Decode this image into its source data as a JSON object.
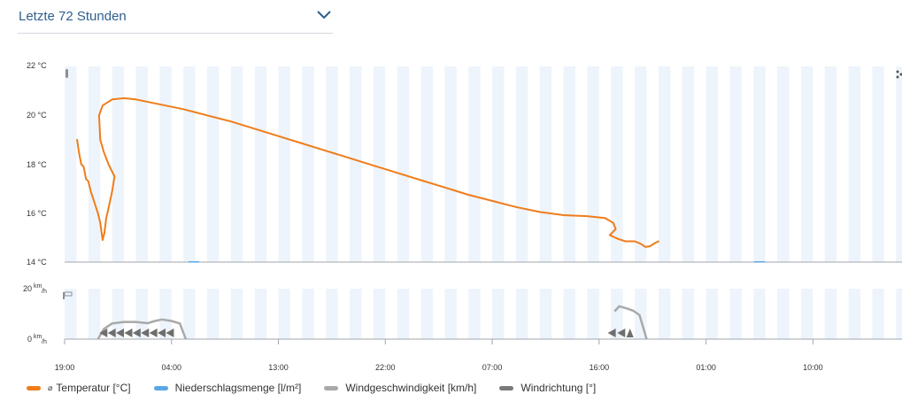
{
  "range_select": {
    "label": "Letzte 72 Stunden"
  },
  "legend": [
    {
      "symbol": "⌀",
      "label": "Temperatur [°C]",
      "color": "#ef7d1a"
    },
    {
      "symbol": "",
      "label": "Niederschlagsmenge [l/m²]",
      "color": "#5aa7e6"
    },
    {
      "symbol": "",
      "label": "Windgeschwindigkeit [km/h]",
      "color": "#a9a9a9"
    },
    {
      "symbol": "",
      "label": "Windrichtung [°]",
      "color": "#7a7a7a"
    }
  ],
  "chart_data": [
    {
      "type": "line",
      "series": [
        {
          "name": "Temperatur [°C]",
          "color": "#ef7d1a",
          "points": [
            [
              1.05,
              19.0
            ],
            [
              1.2,
              18.5
            ],
            [
              1.4,
              18.0
            ],
            [
              1.6,
              17.9
            ],
            [
              1.8,
              17.4
            ],
            [
              2.0,
              17.3
            ],
            [
              2.2,
              16.9
            ],
            [
              2.4,
              16.6
            ],
            [
              2.6,
              16.3
            ],
            [
              2.8,
              16.0
            ],
            [
              3.0,
              15.6
            ],
            [
              3.2,
              14.9
            ],
            [
              3.35,
              15.2
            ],
            [
              3.5,
              15.8
            ],
            [
              3.7,
              16.2
            ],
            [
              4.0,
              16.9
            ],
            [
              4.2,
              17.5
            ],
            [
              3.7,
              18.0
            ],
            [
              3.3,
              18.5
            ],
            [
              3.0,
              19.0
            ],
            [
              2.9,
              20.0
            ],
            [
              3.2,
              20.4
            ],
            [
              4.0,
              20.65
            ],
            [
              5.0,
              20.7
            ],
            [
              6.0,
              20.65
            ],
            [
              8.0,
              20.45
            ],
            [
              10.0,
              20.25
            ],
            [
              12.0,
              20.0
            ],
            [
              14.0,
              19.75
            ],
            [
              16.0,
              19.45
            ],
            [
              18.0,
              19.15
            ],
            [
              20.0,
              18.85
            ],
            [
              22.0,
              18.55
            ],
            [
              24.0,
              18.25
            ],
            [
              26.0,
              17.95
            ],
            [
              28.0,
              17.65
            ],
            [
              30.0,
              17.35
            ],
            [
              32.0,
              17.05
            ],
            [
              34.0,
              16.75
            ],
            [
              36.0,
              16.5
            ],
            [
              38.0,
              16.25
            ],
            [
              40.0,
              16.05
            ],
            [
              42.0,
              15.92
            ],
            [
              44.0,
              15.88
            ],
            [
              45.5,
              15.8
            ],
            [
              46.2,
              15.6
            ],
            [
              46.4,
              15.35
            ],
            [
              45.9,
              15.1
            ],
            [
              46.6,
              14.95
            ],
            [
              47.2,
              14.85
            ],
            [
              48.0,
              14.85
            ],
            [
              48.5,
              14.75
            ],
            [
              48.9,
              14.62
            ],
            [
              49.3,
              14.65
            ],
            [
              49.7,
              14.78
            ],
            [
              50.0,
              14.85
            ]
          ]
        }
      ],
      "ylim": [
        14,
        22
      ],
      "yticks": [
        "22 °C",
        "20 °C",
        "18 °C",
        "16 °C",
        "14 °C"
      ]
    },
    {
      "type": "area",
      "series": [
        {
          "name": "Windgeschwindigkeit [km/h]",
          "color": "#a9a9a9",
          "points": [
            [
              2.8,
              0
            ],
            [
              3.3,
              4
            ],
            [
              4.0,
              6.2
            ],
            [
              5.0,
              6.8
            ],
            [
              6.0,
              6.8
            ],
            [
              7.0,
              6.3
            ],
            [
              7.6,
              7.2
            ],
            [
              8.2,
              7.8
            ],
            [
              9.0,
              7.2
            ],
            [
              9.7,
              6.2
            ],
            [
              10.2,
              0
            ],
            [
              45.8,
              0
            ],
            [
              46.3,
              11
            ],
            [
              46.7,
              13
            ],
            [
              47.3,
              12.2
            ],
            [
              47.9,
              11.2
            ],
            [
              48.4,
              9.5
            ],
            [
              49.0,
              0
            ]
          ]
        }
      ],
      "wind_direction_arrows": [
        {
          "t": 3.3,
          "dir": "◄"
        },
        {
          "t": 4.0,
          "dir": "◄"
        },
        {
          "t": 4.7,
          "dir": "◄"
        },
        {
          "t": 5.4,
          "dir": "◄"
        },
        {
          "t": 6.1,
          "dir": "◄"
        },
        {
          "t": 6.8,
          "dir": "◄"
        },
        {
          "t": 7.5,
          "dir": "◄"
        },
        {
          "t": 8.2,
          "dir": "◄"
        },
        {
          "t": 8.9,
          "dir": "◄"
        },
        {
          "t": 46.1,
          "dir": "◄"
        },
        {
          "t": 46.9,
          "dir": "◄"
        },
        {
          "t": 47.6,
          "dir": "▲"
        }
      ],
      "ylim": [
        0,
        20
      ],
      "yticks": [
        "20 km/h",
        "0 km/h"
      ]
    }
  ],
  "x_axis": {
    "ticks": [
      {
        "t": 0,
        "label": "19:00"
      },
      {
        "t": 9,
        "label": "04:00"
      },
      {
        "t": 18,
        "label": "13:00"
      },
      {
        "t": 27,
        "label": "22:00"
      },
      {
        "t": 36,
        "label": "07:00"
      },
      {
        "t": 45,
        "label": "16:00"
      },
      {
        "t": 54,
        "label": "01:00"
      },
      {
        "t": 63,
        "label": "10:00"
      }
    ],
    "range": [
      0,
      70.5
    ]
  },
  "colors": {
    "stripe": "#eef4fc",
    "axis": "#a0a6ae",
    "temperature": "#ef7d1a",
    "wind": "#a9a9a9",
    "wind_arrow": "#6e6e6e"
  }
}
